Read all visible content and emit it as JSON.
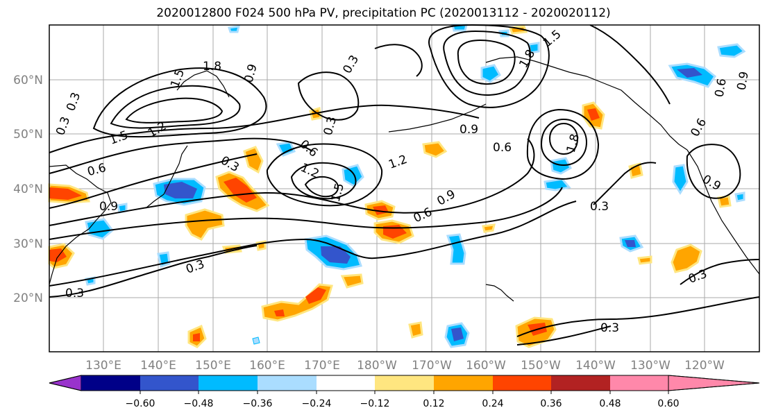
{
  "title": "2020012800 F024 500 hPa PV, precipitation PC (2020013112 - 2020020112)",
  "lat_labels": [
    "60°N",
    "50°N",
    "40°N",
    "30°N",
    "20°N"
  ],
  "lon_labels": [
    "130°E",
    "140°E",
    "150°E",
    "160°E",
    "170°E",
    "180°W",
    "170°W",
    "160°W",
    "150°W",
    "140°W",
    "130°W",
    "120°W"
  ],
  "contour_labels": [
    {
      "text": "1.8"
    },
    {
      "text": "1.5"
    },
    {
      "text": "0.9"
    },
    {
      "text": "0.3"
    },
    {
      "text": "0.3"
    },
    {
      "text": "1.5"
    },
    {
      "text": "1.2"
    },
    {
      "text": "0.6"
    },
    {
      "text": "0.3"
    },
    {
      "text": "0.6"
    },
    {
      "text": "0.9"
    },
    {
      "text": "0.3"
    },
    {
      "text": "1.2"
    },
    {
      "text": "1.5"
    },
    {
      "text": "1.2"
    },
    {
      "text": "0.6"
    },
    {
      "text": "0.9"
    },
    {
      "text": "0.9"
    },
    {
      "text": "0.6"
    },
    {
      "text": "1.5"
    },
    {
      "text": "1.8"
    },
    {
      "text": "0.3"
    },
    {
      "text": "1.8"
    },
    {
      "text": "0.6"
    },
    {
      "text": "0.9"
    },
    {
      "text": "0.3"
    },
    {
      "text": "0.3"
    },
    {
      "text": "0.3"
    },
    {
      "text": "0.3"
    },
    {
      "text": "0.3"
    },
    {
      "text": "0.6"
    },
    {
      "text": "0.9"
    }
  ],
  "colorbar": {
    "ticks": [
      "−0.60",
      "−0.48",
      "−0.36",
      "−0.24",
      "−0.12",
      "0.12",
      "0.24",
      "0.36",
      "0.48",
      "0.60"
    ],
    "colors": [
      "#9933cc",
      "#000088",
      "#3355cc",
      "#00bbff",
      "#aaddff",
      "#ffffff",
      "#ffe680",
      "#ffa500",
      "#ff4400",
      "#b22222",
      "#ff88aa"
    ]
  },
  "colors": {
    "pos_light": "#ffe680",
    "pos_mid": "#ffa500",
    "pos_strong": "#ff4400",
    "neg_light": "#aaddff",
    "neg_mid": "#00bbff",
    "neg_strong": "#3355cc",
    "grid": "#aaaaaa"
  }
}
